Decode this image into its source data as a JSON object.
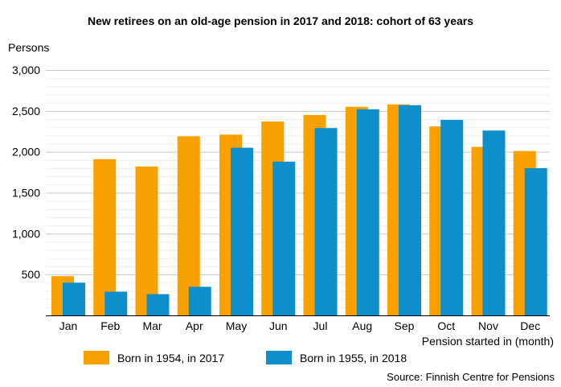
{
  "chart_data": {
    "type": "bar",
    "title": "New retirees on an old-age pension in 2017 and 2018: cohort of 63 years",
    "ylabel": "Persons",
    "xlabel": "Pension started in (month)",
    "source": "Source: Finnish Centre for Pensions",
    "categories": [
      "Jan",
      "Feb",
      "Mar",
      "Apr",
      "May",
      "Jun",
      "Jul",
      "Aug",
      "Sep",
      "Oct",
      "Nov",
      "Dec"
    ],
    "ylim": [
      0,
      3000
    ],
    "yticks": [
      0,
      500,
      1000,
      1500,
      2000,
      2500,
      3000
    ],
    "ytick_labels": [
      "",
      "500",
      "1,000",
      "1,500",
      "2,000",
      "2,500",
      "3,000"
    ],
    "grid": true,
    "legend_position": "bottom",
    "series": [
      {
        "name": "Born in 1954, in 2017",
        "color": "#f9a101",
        "values": [
          480,
          1910,
          1820,
          2190,
          2210,
          2370,
          2450,
          2550,
          2580,
          2310,
          2060,
          2010
        ]
      },
      {
        "name": "Born in 1955, in 2018",
        "color": "#0f8ecc",
        "values": [
          400,
          290,
          260,
          350,
          2050,
          1880,
          2290,
          2520,
          2570,
          2390,
          2260,
          1800
        ]
      }
    ]
  }
}
